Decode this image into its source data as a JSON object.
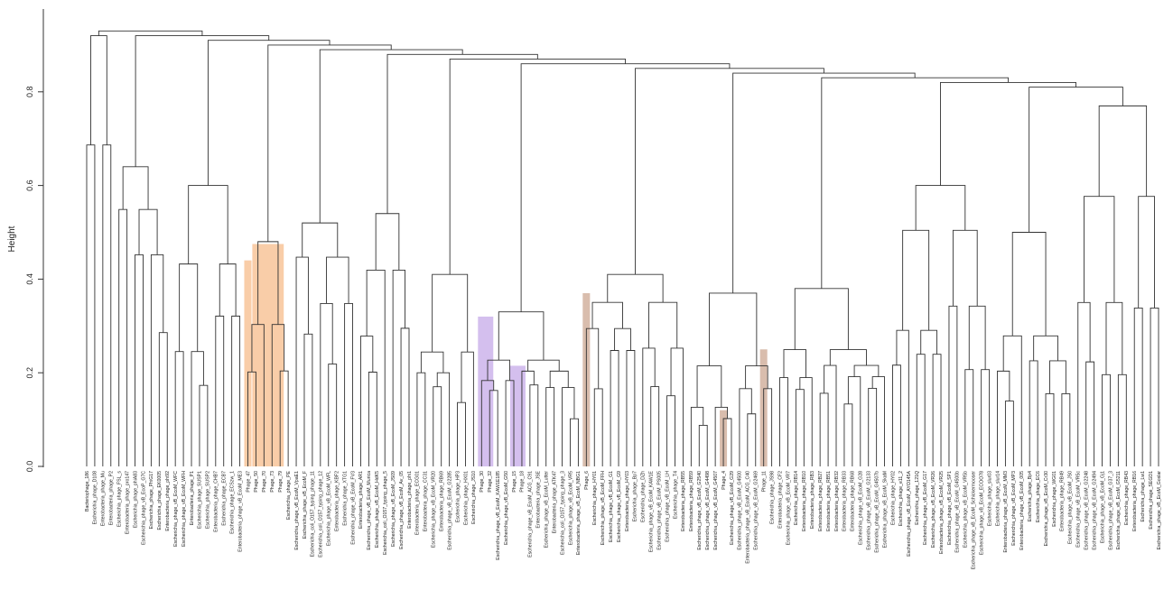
{
  "chart_data": {
    "type": "dendrogram",
    "title": "",
    "ylabel": "Height",
    "xlabel": "",
    "ylim": [
      0,
      0.98
    ],
    "yticks": [
      0.0,
      0.2,
      0.4,
      0.6,
      0.8
    ],
    "ytick_labels": [
      "0.0",
      "0.2",
      "0.4",
      "0.6",
      "0.8"
    ],
    "grid": false,
    "highlight_colors": {
      "orange": "#f4a460",
      "purple": "#b18be0",
      "brown": "#b9866a"
    },
    "highlights": [
      {
        "color": "orange",
        "leaves": [
          "Phage_47"
        ],
        "height": 0.44
      },
      {
        "color": "orange",
        "leaves": [
          "Phage_50",
          "Phage_70",
          "Phage_73",
          "Phage_79"
        ],
        "height": 0.475
      },
      {
        "color": "purple",
        "leaves": [
          "Phage_30",
          "Phage_32"
        ],
        "height": 0.32
      },
      {
        "color": "purple",
        "leaves": [
          "Phage_15",
          "Phage_18"
        ],
        "height": 0.215
      },
      {
        "color": "brown",
        "leaves": [
          "Phage_6"
        ],
        "height": 0.37
      },
      {
        "color": "brown",
        "leaves": [
          "Phage_4"
        ],
        "height": 0.12
      },
      {
        "color": "brown",
        "leaves": [
          "Phage_11"
        ],
        "height": 0.25
      }
    ],
    "leaves": [
      "Bacteriophage_186",
      "Escherichia_phage_D108",
      "Enterobacteria_phage_Mu",
      "Enterobacteria_phage_P2",
      "Escherichia_phage_FSL_s",
      "Enterobacteria_phage_pro147",
      "Escherichia_phage_phiA83",
      "Escherichia_phage_vB_EcoP_G7C",
      "Escherichia_phage_PhiG17",
      "Escherichia_phage_EK0005",
      "Enterobacteria_phage_phi92",
      "Escherichia_phage_vB_EcoM_WFC",
      "Escherichia_phage_vB_EcoM_WFH",
      "Enterobacteria_phage_P1",
      "Escherichia_phage_SUSP1",
      "Escherichia_phage_SUSP2",
      "Enterobacteria_phage_CHB7",
      "Escherichia_phage_ECB7",
      "Escherichia_phage_ECSzw_1",
      "Enterobacteria_phage_vB_EcoM_ME3",
      "Phage_47",
      "Phage_50",
      "Phage_70",
      "Phage_73",
      "Phage_79",
      "Escherichia_phage_PE",
      "Escherichia_phage_vB_EcoM_VpaE1",
      "Escherichia_phage_vB_EcoM_F",
      "Escherichia_coli_O157_typing_phage_11",
      "Escherichia_coli_O157_typing_phage_12",
      "Escherichia_phage_vB_EcoM_WFL",
      "Enterobacteria_phage_KBF2",
      "Escherichia_phage_XTG1",
      "Escherichia_phage_vB_EcoM_FV3",
      "Enterobacteria_phage_AR1",
      "Escherichia_phage_vB_EcoM_Murica",
      "Escherichia_phage_vB_EcoM_HdK5",
      "Escherichia_coli_O157_typing_phage_5",
      "Escherichia_phage_vB_EcoM_JS09",
      "Escherichia_phage_vB_EcoM_Av_05",
      "Enterobacteria_phage_phi1",
      "Enterobacteria_phage_ECG01",
      "Enterobacteria_phage_CC31",
      "Escherichia_phage_vB_EcoM_VR20",
      "Enterobacteria_phage_RB69",
      "Escherichia_phage_vB_EcoM_G2285",
      "Escherichia_phage_HP3",
      "Escherichia_phage_HX01",
      "Escherichia_phage_JS10",
      "Phage_30",
      "Phage_32",
      "Escherichia_phage_vB_EcoM_KAW1E185",
      "Escherichia_phage_vB_EcoM_G50",
      "Phage_15",
      "Phage_18",
      "Escherichia_phage_vB_EcoM_ACG_C91",
      "Enterobacteria_phage_JSE",
      "Escherichia_phage_vB_EcoM_Lutter",
      "Enterobacteria_phage_ATK47",
      "Escherichia_coli_O157_typing_phage_3",
      "Escherichia_phage_vB_EcoM_VR5",
      "Enterobacteria_phage_vB_EcoM_NBG1",
      "Phage_6",
      "Escherichia_phage_HY01",
      "Escherichia_phage_vB_EcoM_FFH",
      "Escherichia_phage_vB_EcoM_G1",
      "Escherichia_phage_vB_EcoM_G9",
      "Enterobacteria_phage_HY03",
      "Escherichia_phage_Bp7",
      "Escherichia_phage_DZh",
      "Escherichia_phage_vB_EcoM_KAW1E",
      "Escherichia_phage_vB_EcoM_PS005",
      "Escherichia_phage_vB_EcoM_LH",
      "Escherichia_phage_T4",
      "Enterobacteria_phage_RB55",
      "Enterobacteria_phage_RB59",
      "Escherichia_phage_vB_EcoM_G2540",
      "Escherichia_phage_vB_EcoM_G4498",
      "Escherichia_phage_vB_EcoM_G4507",
      "Phage_4",
      "Escherichia_phage_vB_EcoM_G29",
      "Escherichia_phage_vB_EcoM_G4500",
      "Enterobacteria_phage_vB_EcoM_ACG_C40",
      "Escherichia_phage_vB_EcoM_G2469",
      "Phage_11",
      "Escherichia_phage_JS98",
      "Enterobacteria_phage_CF2",
      "Escherichia_phage_vB_EcoM_VR7",
      "Escherichia_phage_RB14",
      "Enterobacteria_phage_RB10",
      "Enterobacteria_phage_RB3",
      "Enterobacteria_phage_RB27",
      "Enterobacteria_phage_RB51",
      "Enterobacteria_phage_RB32",
      "Enterobacteria_phage_RB33",
      "Enterobacteria_phage_RB68",
      "Escherichia_phage_vB_EcoM_G28",
      "Escherichia_phage_vB_EcoM_G2133",
      "Escherichia_phage_vB_EcoM_G4507b",
      "Escherichia_phage_vB_EcoM_SkaM",
      "Escherichia_phage_HY02",
      "Escherichia_phage_e11_2",
      "Escherichia_phage_vB_EcoM_AYO145A",
      "Escherichia_phage_121Q",
      "Escherichia_phage_vB_EcoM_G17",
      "Escherichia_phage_vB_EcoM_VR26",
      "Enterobacteria_phage_vB_EcoM_VR25",
      "Escherichia_phage_vB_EcoM_SP1",
      "Escherichia_phage_vB_EcoM_G4500b",
      "Escherichia_phage_vB_EcoM_VR5b",
      "Escherichia_phage_vB_EcoM_Schickermooser",
      "Escherichia_phage_vB_EcoM_ECOO78",
      "Escherichia_phage_slur03",
      "Escherichia_phage_slur14",
      "Enterobacteria_phage_vB_EcoM_MM3",
      "Escherichia_phage_vB_EcoM_MP3",
      "Enterobacteria_phage_vB_EcoM_005",
      "Escherichia_phage_Bp4",
      "Escherichia_phage_EC6",
      "Escherichia_phage_vB_EcoM_Cr30",
      "Escherichia_phage_WG01",
      "Enterobacteria_phage_RB49",
      "Escherichia_phage_vB_EcoM_JS0",
      "Escherichia_phage_vB_EcoM_VR5c",
      "Escherichia_phage_vB_EcoM_G2248",
      "Escherichia_phage_vB_EcoM_G2494",
      "Escherichia_phage_vB_EcoM_Gj1",
      "Escherichia_phage_vB_EcoM_G37_3",
      "Escherichia_phage_vB_EcoM_G5211",
      "Escherichia_phage_RB43",
      "Enterobacteria_phage_RB16",
      "Escherichia_phage_Lw1",
      "Escherichia_phage_SEGD1",
      "Escherichia_phage_vB_EcoM_Goslar"
    ]
  }
}
